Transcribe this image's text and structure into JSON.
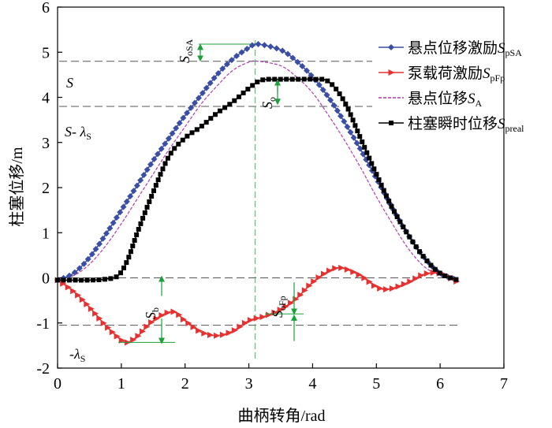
{
  "chart_data": {
    "type": "line",
    "xlabel": "曲柄转角/rad",
    "ylabel": "柱塞位移/m",
    "xlim": [
      0,
      7
    ],
    "ylim": [
      -2,
      6
    ],
    "xticks": [
      0,
      1,
      2,
      3,
      4,
      5,
      6,
      7
    ],
    "yticks": [
      -2,
      -1,
      0,
      1,
      2,
      3,
      4,
      5,
      6
    ],
    "legend_position": "top-right",
    "legend": [
      {
        "id": "s_psa",
        "label": "悬点位移激励",
        "sym": "S",
        "sub": "pSA"
      },
      {
        "id": "s_pfp",
        "label": "泵载荷激励",
        "sym": "S",
        "sub": "pFp"
      },
      {
        "id": "s_a",
        "label": "悬点位移",
        "sym": "S",
        "sub": "A"
      },
      {
        "id": "s_preal",
        "label": "柱塞瞬时位移",
        "sym": "S",
        "sub": "preal"
      }
    ],
    "series": [
      {
        "name": "悬点位移激励SpSA",
        "color": "#3b4ea6",
        "marker": "diamond",
        "x": [
          0,
          0.25,
          0.5,
          0.75,
          1.0,
          1.25,
          1.5,
          1.75,
          2.0,
          2.25,
          2.5,
          2.75,
          3.0,
          3.14,
          3.5,
          3.75,
          4.0,
          4.25,
          4.5,
          4.75,
          5.0,
          5.25,
          5.5,
          5.75,
          6.0,
          6.28
        ],
        "y": [
          -0.05,
          0.1,
          0.45,
          0.95,
          1.5,
          2.05,
          2.6,
          3.1,
          3.6,
          4.05,
          4.5,
          4.85,
          5.1,
          5.18,
          5.05,
          4.8,
          4.45,
          4.0,
          3.45,
          2.85,
          2.2,
          1.55,
          0.95,
          0.45,
          0.1,
          -0.05
        ]
      },
      {
        "name": "泵载荷激励SpFp",
        "color": "#e8302e",
        "marker": "triangle",
        "x": [
          0,
          0.25,
          0.5,
          0.75,
          1.0,
          1.1,
          1.25,
          1.5,
          1.8,
          2.0,
          2.25,
          2.5,
          2.75,
          3.0,
          3.25,
          3.5,
          3.75,
          4.0,
          4.25,
          4.45,
          4.75,
          5.0,
          5.2,
          5.5,
          5.75,
          6.0,
          6.28
        ],
        "y": [
          -0.05,
          -0.3,
          -0.65,
          -1.05,
          -1.38,
          -1.43,
          -1.3,
          -0.95,
          -0.75,
          -0.95,
          -1.2,
          -1.28,
          -1.18,
          -0.95,
          -0.85,
          -0.7,
          -0.45,
          -0.1,
          0.15,
          0.22,
          0.05,
          -0.2,
          -0.25,
          -0.1,
          0.08,
          0.1,
          -0.1
        ]
      },
      {
        "name": "悬点位移SA",
        "color": "#b23ab2",
        "marker": "none",
        "x": [
          0,
          0.25,
          0.5,
          0.75,
          1.0,
          1.25,
          1.5,
          1.75,
          2.0,
          2.25,
          2.5,
          2.75,
          3.0,
          3.14,
          3.5,
          3.75,
          4.0,
          4.25,
          4.5,
          4.75,
          5.0,
          5.25,
          5.5,
          5.75,
          6.0,
          6.28
        ],
        "y": [
          0,
          0.05,
          0.3,
          0.7,
          1.2,
          1.75,
          2.3,
          2.85,
          3.35,
          3.85,
          4.25,
          4.6,
          4.78,
          4.8,
          4.7,
          4.45,
          4.1,
          3.6,
          3.05,
          2.45,
          1.8,
          1.2,
          0.65,
          0.25,
          0.05,
          -0.05
        ]
      },
      {
        "name": "柱塞瞬时位移Spreal",
        "color": "#000000",
        "marker": "square",
        "x": [
          0,
          0.25,
          0.5,
          0.75,
          0.95,
          1.1,
          1.25,
          1.5,
          1.75,
          2.0,
          2.25,
          2.5,
          2.75,
          3.0,
          3.2,
          3.5,
          3.75,
          4.0,
          4.25,
          4.5,
          4.75,
          5.0,
          5.25,
          5.5,
          5.75,
          6.0,
          6.28
        ],
        "y": [
          -0.05,
          -0.05,
          -0.05,
          -0.03,
          0.05,
          0.4,
          1.0,
          1.9,
          2.7,
          3.1,
          3.35,
          3.65,
          3.9,
          4.2,
          4.38,
          4.4,
          4.4,
          4.4,
          4.35,
          3.9,
          3.1,
          2.3,
          1.55,
          0.95,
          0.45,
          0.1,
          -0.05
        ]
      }
    ],
    "reference_lines": {
      "horizontal_dashed": [
        4.8,
        3.8,
        0,
        -1.05
      ],
      "vertical_dashed": 3.1
    },
    "annotations": {
      "S": "S",
      "S_minus": "S- λ",
      "S_minus_sub": "S",
      "neg_lambda": "-λ",
      "neg_lambda_sub": "S",
      "SoSA": {
        "sym": "S",
        "sub": "oSA"
      },
      "So": {
        "sym": "S",
        "sub": "o"
      },
      "Sb": {
        "sym": "S",
        "sub": "b"
      },
      "SoFp": {
        "sym": "S",
        "sub": "oFp"
      }
    }
  }
}
